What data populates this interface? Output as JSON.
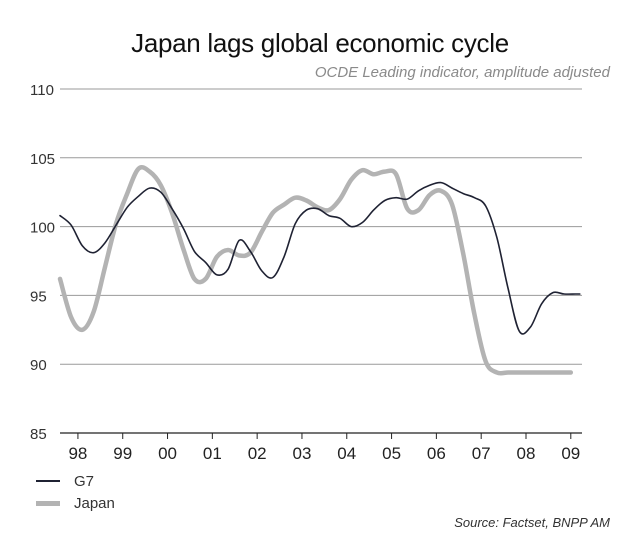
{
  "chart_data": {
    "type": "line",
    "title": "Japan lags global economic cycle",
    "subtitle": "OCDE Leading indicator, amplitude adjusted",
    "source": "Source: Factset, BNPP AM",
    "xlabel": "",
    "ylabel": "",
    "ylim": [
      85,
      110
    ],
    "yticks": [
      85,
      90,
      95,
      100,
      105,
      110
    ],
    "xlim": [
      1997.6,
      2009.25
    ],
    "xticks": [
      {
        "label": "98",
        "x": 1998.0
      },
      {
        "label": "99",
        "x": 1999.0
      },
      {
        "label": "00",
        "x": 2000.0
      },
      {
        "label": "01",
        "x": 2001.0
      },
      {
        "label": "02",
        "x": 2002.0
      },
      {
        "label": "03",
        "x": 2003.0
      },
      {
        "label": "04",
        "x": 2004.0
      },
      {
        "label": "05",
        "x": 2005.0
      },
      {
        "label": "06",
        "x": 2006.0
      },
      {
        "label": "07",
        "x": 2007.0
      },
      {
        "label": "08",
        "x": 2008.0
      },
      {
        "label": "09",
        "x": 2009.0
      }
    ],
    "grid": "horizontal",
    "legend_position": "bottom-left",
    "series": [
      {
        "name": "G7",
        "color": "#1f2233",
        "x": [
          1997.6,
          1997.85,
          1998.1,
          1998.35,
          1998.6,
          1998.85,
          1999.1,
          1999.35,
          1999.6,
          1999.85,
          2000.1,
          2000.35,
          2000.6,
          2000.85,
          2001.1,
          2001.35,
          2001.6,
          2001.85,
          2002.1,
          2002.35,
          2002.6,
          2002.85,
          2003.1,
          2003.35,
          2003.6,
          2003.85,
          2004.1,
          2004.35,
          2004.6,
          2004.85,
          2005.1,
          2005.35,
          2005.6,
          2005.85,
          2006.1,
          2006.35,
          2006.6,
          2006.85,
          2007.1,
          2007.35,
          2007.6,
          2007.85,
          2008.1,
          2008.35,
          2008.6,
          2008.85,
          2009.1,
          2009.2
        ],
        "values": [
          100.8,
          100.1,
          98.6,
          98.1,
          98.8,
          100.1,
          101.4,
          102.2,
          102.8,
          102.5,
          101.3,
          99.9,
          98.2,
          97.4,
          96.5,
          96.9,
          99.0,
          98.2,
          96.8,
          96.3,
          97.8,
          100.2,
          101.2,
          101.3,
          100.8,
          100.6,
          100.0,
          100.3,
          101.2,
          101.9,
          102.1,
          102.0,
          102.6,
          103.0,
          103.2,
          102.8,
          102.4,
          102.1,
          101.5,
          99.2,
          95.5,
          92.4,
          92.7,
          94.4,
          95.2,
          95.1,
          95.1,
          95.1
        ]
      },
      {
        "name": "Japan",
        "color": "#b3b3b3",
        "x": [
          1997.6,
          1997.85,
          1998.1,
          1998.35,
          1998.6,
          1998.85,
          1999.1,
          1999.35,
          1999.6,
          1999.85,
          2000.1,
          2000.35,
          2000.6,
          2000.85,
          2001.1,
          2001.35,
          2001.6,
          2001.85,
          2002.1,
          2002.35,
          2002.6,
          2002.85,
          2003.1,
          2003.35,
          2003.6,
          2003.85,
          2004.1,
          2004.35,
          2004.6,
          2004.85,
          2005.1,
          2005.35,
          2005.6,
          2005.85,
          2006.1,
          2006.35,
          2006.6,
          2006.85,
          2007.1,
          2007.35,
          2007.6,
          2007.85,
          2008.1,
          2008.35,
          2008.6,
          2008.85,
          2009.0
        ],
        "values": [
          96.2,
          93.4,
          92.5,
          93.8,
          97.0,
          100.2,
          102.4,
          104.2,
          104.0,
          103.0,
          101.0,
          98.4,
          96.2,
          96.2,
          97.8,
          98.3,
          97.9,
          98.1,
          99.6,
          101.0,
          101.6,
          102.1,
          101.9,
          101.4,
          101.2,
          102.0,
          103.4,
          104.1,
          103.8,
          104.0,
          103.8,
          101.3,
          101.2,
          102.3,
          102.6,
          101.6,
          98.0,
          93.6,
          90.2,
          89.4,
          89.4,
          89.4,
          89.4,
          89.4,
          89.4,
          89.4,
          89.4
        ]
      }
    ]
  }
}
